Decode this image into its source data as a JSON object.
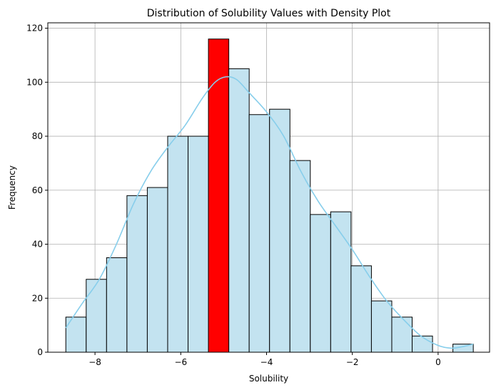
{
  "chart_data": {
    "type": "bar",
    "title": "Distribution of Solubility Values with Density Plot",
    "xlabel": "Solubility",
    "ylabel": "Frequency",
    "xlim": [
      -9.1,
      1.2
    ],
    "ylim": [
      0,
      122
    ],
    "x_ticks": [
      -8,
      -6,
      -4,
      -2,
      0
    ],
    "x_tick_labels": [
      "−8",
      "−6",
      "−4",
      "−2",
      "0"
    ],
    "y_ticks": [
      0,
      20,
      40,
      60,
      80,
      100,
      120
    ],
    "y_tick_labels": [
      "0",
      "20",
      "40",
      "60",
      "80",
      "100",
      "120"
    ],
    "grid": true,
    "bin_edges": [
      -8.68,
      -8.205,
      -7.73,
      -7.255,
      -6.78,
      -6.305,
      -5.83,
      -5.355,
      -4.88,
      -4.405,
      -3.93,
      -3.455,
      -2.98,
      -2.505,
      -2.03,
      -1.555,
      -1.08,
      -0.605,
      -0.13,
      0.345,
      0.82
    ],
    "counts": [
      13,
      27,
      35,
      58,
      61,
      80,
      80,
      116,
      105,
      88,
      90,
      71,
      51,
      52,
      32,
      19,
      13,
      6,
      0,
      3
    ],
    "highlight_bin_index": 7,
    "colors": {
      "bar_fill": "#c3e3f0",
      "bar_edge": "#000000",
      "highlight_fill": "#ff0000",
      "kde_line": "#87ceeb",
      "grid": "#b0b0b0"
    },
    "kde": {
      "x": [
        -8.68,
        -8.3,
        -7.9,
        -7.5,
        -7.1,
        -6.7,
        -6.3,
        -5.9,
        -5.5,
        -5.2,
        -4.95,
        -4.7,
        -4.4,
        -4.0,
        -3.6,
        -3.2,
        -2.8,
        -2.4,
        -2.0,
        -1.6,
        -1.2,
        -0.8,
        -0.4,
        0.0,
        0.3,
        0.55,
        0.82
      ],
      "y": [
        9,
        18,
        27,
        40,
        55,
        67,
        76,
        84,
        94,
        100,
        102,
        101,
        96,
        89,
        80,
        67,
        56,
        47,
        38,
        28,
        19,
        12,
        6,
        2.5,
        1.5,
        2,
        3
      ]
    }
  }
}
